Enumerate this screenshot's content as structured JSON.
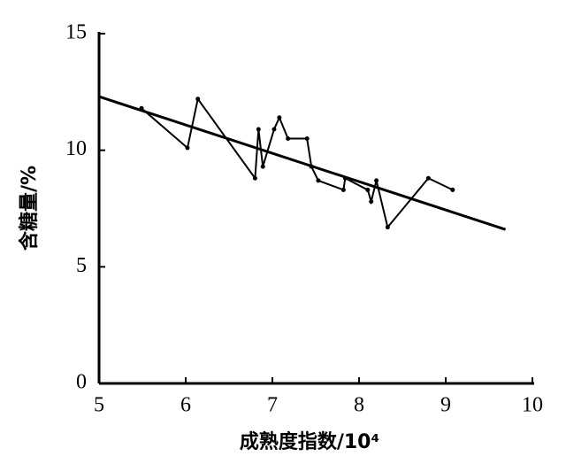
{
  "chart_data": {
    "type": "line",
    "x_label": "成熟度指数/10⁴",
    "y_label": "含糖量/%",
    "xlim": [
      5,
      10
    ],
    "xticks": [
      5,
      6,
      7,
      8,
      9,
      10
    ],
    "ylim": [
      0,
      15
    ],
    "yticks": [
      0,
      5,
      10,
      15
    ],
    "series": [
      {
        "color": "#000000",
        "marker": true,
        "x": [
          5.49,
          6.02,
          6.14,
          6.8,
          6.84,
          6.89,
          7.02,
          7.08,
          7.18,
          7.4,
          7.45,
          7.53,
          7.82,
          7.84,
          8.1,
          8.14,
          8.2,
          8.33,
          8.8,
          9.08
        ],
        "values": [
          11.8,
          10.1,
          12.2,
          8.8,
          10.9,
          9.3,
          10.9,
          11.4,
          10.5,
          10.5,
          9.3,
          8.7,
          8.3,
          8.8,
          8.3,
          7.8,
          8.7,
          6.7,
          8.8,
          8.3
        ]
      },
      {
        "color": "#000000",
        "marker": false,
        "x": [
          5,
          9.69
        ],
        "values": [
          12.3,
          6.6
        ]
      }
    ]
  }
}
